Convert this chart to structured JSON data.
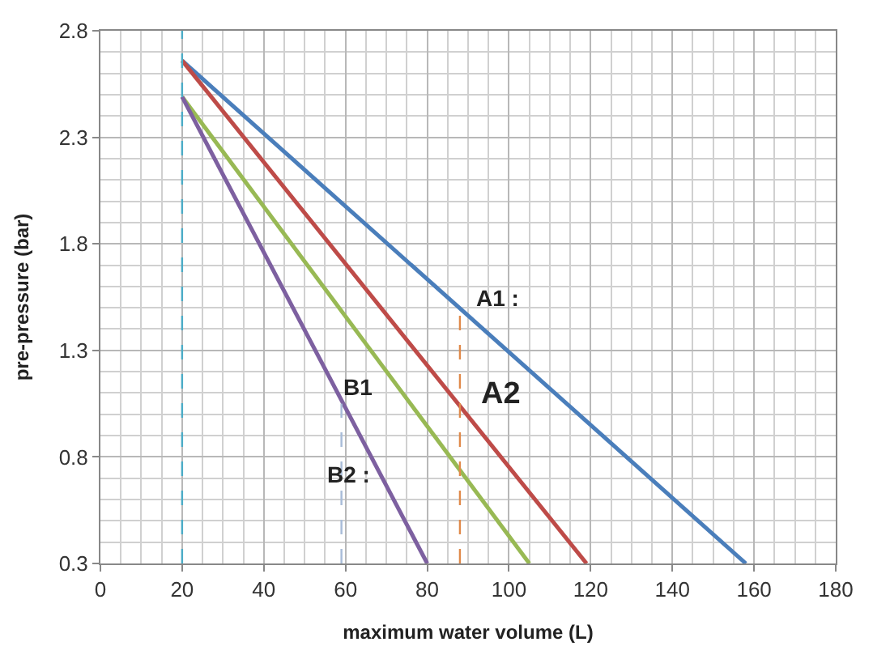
{
  "chart_data": {
    "type": "line",
    "xlabel": "maximum water volume (L)",
    "ylabel": "pre-pressure (bar)",
    "xlim": [
      0,
      180
    ],
    "xticks": [
      0,
      20,
      40,
      60,
      80,
      100,
      120,
      140,
      160,
      180
    ],
    "ylim": [
      0.3,
      2.8
    ],
    "yticks": [
      0.3,
      0.8,
      1.3,
      1.8,
      2.3,
      2.8
    ],
    "grid": true,
    "marker": "none",
    "line_style": "solid",
    "series": [
      {
        "color": "#4a7ebb",
        "x": [
          20,
          158
        ],
        "values": [
          2.66,
          0.3
        ]
      },
      {
        "color": "#be4b48",
        "x": [
          20,
          119
        ],
        "values": [
          2.66,
          0.3
        ]
      },
      {
        "color": "#98b954",
        "x": [
          20,
          105
        ],
        "values": [
          2.49,
          0.3
        ]
      },
      {
        "color": "#7d60a0",
        "x": [
          20,
          80
        ],
        "values": [
          2.49,
          0.3
        ]
      },
      {
        "color": "#e08a4a",
        "x": [
          88,
          88
        ],
        "values": [
          0.3,
          1.48
        ],
        "line_style": "dashed"
      },
      {
        "color": "#a8bcd8",
        "x": [
          59,
          59
        ],
        "values": [
          0.3,
          1.05
        ],
        "line_style": "dashed"
      }
    ],
    "ref_lines": [
      {
        "axis": "x",
        "value": 20,
        "color": "#4bacc6",
        "line_style": "dashed"
      }
    ],
    "annotations": [
      "A1 :",
      "A2",
      "B1",
      "B2 :"
    ]
  }
}
